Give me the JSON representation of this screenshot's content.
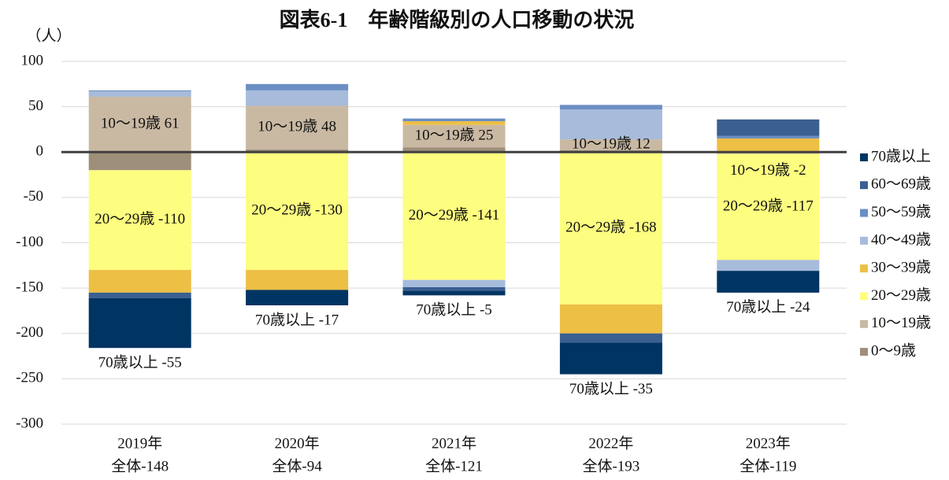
{
  "chart_data": {
    "type": "stacked_bar",
    "title": "図表6-1　年齢階級別の人口移動の状況",
    "y_unit": "（人）",
    "categories": [
      "2019年",
      "2020年",
      "2021年",
      "2022年",
      "2023年"
    ],
    "category_sublabels": [
      "全体-148",
      "全体-94",
      "全体-121",
      "全体-193",
      "全体-119"
    ],
    "ylim": [
      -300,
      100
    ],
    "yticks": [
      -300,
      -250,
      -200,
      -150,
      -100,
      -50,
      0,
      50,
      100
    ],
    "grid": true,
    "legend": "right",
    "series": [
      {
        "name": "70歳以上",
        "color": "#003462",
        "values": [
          -55,
          -17,
          -5,
          -35,
          -24
        ],
        "value_labels": [
          "70歳以上 -55",
          "70歳以上 -17",
          "70歳以上 -5",
          "70歳以上 -35",
          "70歳以上 -24"
        ]
      },
      {
        "name": "60～69歳",
        "color": "#3a5f91",
        "values": [
          -6,
          0,
          -4,
          -10,
          18
        ]
      },
      {
        "name": "50～59歳",
        "color": "#6b8fc4",
        "values": [
          1,
          7,
          3,
          5,
          3
        ]
      },
      {
        "name": "40～49歳",
        "color": "#a7bbdb",
        "values": [
          6,
          17,
          -8,
          33,
          -12
        ]
      },
      {
        "name": "30～39歳",
        "color": "#edbf45",
        "values": [
          -25,
          -22,
          4,
          -32,
          15
        ]
      },
      {
        "name": "20～29歳",
        "color": "#fdfd80",
        "values": [
          -110,
          -130,
          -141,
          -168,
          -117
        ],
        "value_labels": [
          "20～29歳 -110",
          "20～29歳 -130",
          "20～29歳 -141",
          "20～29歳 -168",
          "20～29歳 -117"
        ]
      },
      {
        "name": "10～19歳",
        "color": "#c9b9a3",
        "values": [
          61,
          48,
          25,
          12,
          -2
        ],
        "value_labels": [
          "10～19歳 61",
          "10～19歳 48",
          "10～19歳 25",
          "10～19歳 12",
          "10～19歳 -2"
        ]
      },
      {
        "name": "0～9歳",
        "color": "#9e8f7a",
        "values": [
          -20,
          3,
          5,
          2,
          0
        ]
      }
    ]
  }
}
